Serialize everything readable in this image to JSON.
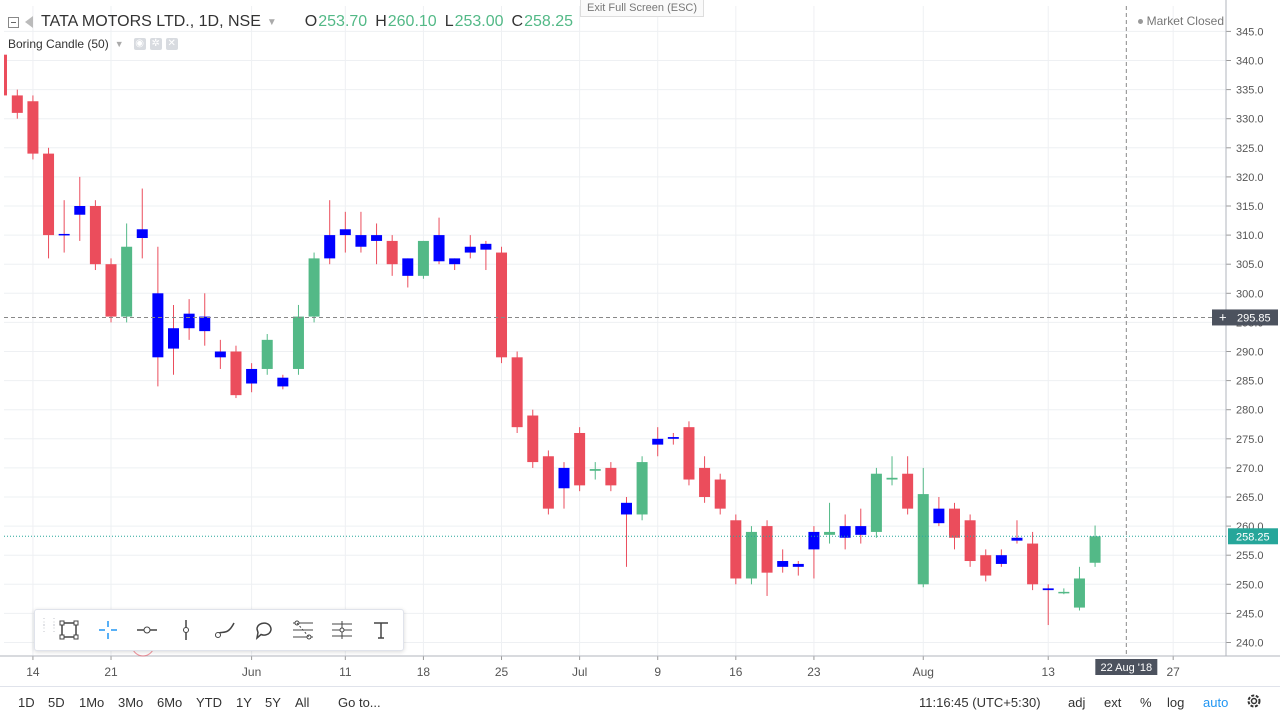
{
  "header": {
    "symbol": "TATA MOTORS LTD., 1D, NSE",
    "ohlc": [
      {
        "label": "O",
        "value": "253.70"
      },
      {
        "label": "H",
        "value": "260.10"
      },
      {
        "label": "L",
        "value": "253.00"
      },
      {
        "label": "C",
        "value": "258.25"
      }
    ],
    "indicator": "Boring Candle (50)",
    "exit_fullscreen": "Exit Full Screen (ESC)",
    "market_status": "Market Closed"
  },
  "colors": {
    "up": "#53b987",
    "down": "#eb4d5c",
    "boring": "#0000ff",
    "axis_text": "#555555",
    "last_price_line": "#26a69a",
    "crosshair": "#888888"
  },
  "chart_data": {
    "type": "candlestick",
    "ylim": [
      237,
      347
    ],
    "y_ticks": [
      240,
      245,
      250,
      255,
      260,
      265,
      270,
      275,
      280,
      285,
      290,
      295,
      300,
      305,
      310,
      315,
      320,
      325,
      330,
      335,
      340,
      345
    ],
    "x_tick_labels": [
      {
        "label": "14",
        "index": 1
      },
      {
        "label": "21",
        "index": 6
      },
      {
        "label": "Jun",
        "index": 15
      },
      {
        "label": "11",
        "index": 21
      },
      {
        "label": "18",
        "index": 26
      },
      {
        "label": "25",
        "index": 31
      },
      {
        "label": "Jul",
        "index": 36
      },
      {
        "label": "9",
        "index": 41
      },
      {
        "label": "16",
        "index": 46
      },
      {
        "label": "23",
        "index": 51
      },
      {
        "label": "Aug",
        "index": 58
      },
      {
        "label": "13",
        "index": 66
      },
      {
        "label": "27",
        "index": 74
      }
    ],
    "crosshair": {
      "price": "295.85",
      "date": "22 Aug '18",
      "index": 71
    },
    "last_price": "258.25",
    "candles": [
      {
        "o": 334,
        "h": 335,
        "l": 330,
        "c": 331,
        "b": 0
      },
      {
        "o": 333,
        "h": 334,
        "l": 323,
        "c": 324,
        "b": 0
      },
      {
        "o": 324,
        "h": 325,
        "l": 306,
        "c": 310,
        "b": 0
      },
      {
        "o": 310,
        "h": 316,
        "l": 307,
        "c": 310.2,
        "b": 1
      },
      {
        "o": 313.5,
        "h": 320,
        "l": 309,
        "c": 315,
        "b": 1
      },
      {
        "o": 315,
        "h": 316,
        "l": 304,
        "c": 305,
        "b": 0
      },
      {
        "o": 305,
        "h": 306,
        "l": 295,
        "c": 296,
        "b": 0
      },
      {
        "o": 296,
        "h": 312,
        "l": 295,
        "c": 308,
        "b": 0
      },
      {
        "o": 309.5,
        "h": 318,
        "l": 306,
        "c": 311,
        "b": 1
      },
      {
        "o": 300,
        "h": 308,
        "l": 284,
        "c": 289,
        "b": 1
      },
      {
        "o": 290.5,
        "h": 298,
        "l": 286,
        "c": 294,
        "b": 1
      },
      {
        "o": 294,
        "h": 299,
        "l": 292,
        "c": 296.5,
        "b": 1
      },
      {
        "o": 293.5,
        "h": 300,
        "l": 291,
        "c": 296,
        "b": 1
      },
      {
        "o": 289,
        "h": 292,
        "l": 287,
        "c": 290,
        "b": 1
      },
      {
        "o": 290,
        "h": 291,
        "l": 282,
        "c": 282.5,
        "b": 0
      },
      {
        "o": 284.5,
        "h": 288,
        "l": 283,
        "c": 287,
        "b": 1
      },
      {
        "o": 287,
        "h": 293,
        "l": 286,
        "c": 292,
        "b": 0
      },
      {
        "o": 284,
        "h": 286,
        "l": 283.5,
        "c": 285.5,
        "b": 1
      },
      {
        "o": 287,
        "h": 298,
        "l": 286,
        "c": 296,
        "b": 0
      },
      {
        "o": 296,
        "h": 307,
        "l": 295,
        "c": 306,
        "b": 0
      },
      {
        "o": 306,
        "h": 316,
        "l": 305,
        "c": 310,
        "b": 1
      },
      {
        "o": 310,
        "h": 314,
        "l": 307,
        "c": 311,
        "b": 1
      },
      {
        "o": 308,
        "h": 314,
        "l": 307,
        "c": 310,
        "b": 1
      },
      {
        "o": 309,
        "h": 312,
        "l": 305,
        "c": 310,
        "b": 1
      },
      {
        "o": 309,
        "h": 310,
        "l": 303,
        "c": 305,
        "b": 0
      },
      {
        "o": 303,
        "h": 306,
        "l": 301,
        "c": 306,
        "b": 1
      },
      {
        "o": 303,
        "h": 309,
        "l": 302.5,
        "c": 309,
        "b": 0
      },
      {
        "o": 310,
        "h": 313,
        "l": 305,
        "c": 305.5,
        "b": 1
      },
      {
        "o": 305,
        "h": 306,
        "l": 304,
        "c": 306,
        "b": 1
      },
      {
        "o": 307,
        "h": 310,
        "l": 306,
        "c": 308,
        "b": 1
      },
      {
        "o": 307.5,
        "h": 309,
        "l": 304,
        "c": 308.5,
        "b": 1
      },
      {
        "o": 307,
        "h": 308,
        "l": 288,
        "c": 289,
        "b": 0
      },
      {
        "o": 289,
        "h": 290,
        "l": 276,
        "c": 277,
        "b": 0
      },
      {
        "o": 279,
        "h": 280,
        "l": 270,
        "c": 271,
        "b": 0
      },
      {
        "o": 272,
        "h": 273,
        "l": 262,
        "c": 263,
        "b": 0
      },
      {
        "o": 266.5,
        "h": 271,
        "l": 263,
        "c": 270,
        "b": 1
      },
      {
        "o": 276,
        "h": 277,
        "l": 266,
        "c": 267,
        "b": 0
      },
      {
        "o": 269.5,
        "h": 271,
        "l": 268,
        "c": 269.8,
        "b": 0
      },
      {
        "o": 270,
        "h": 271,
        "l": 266,
        "c": 267,
        "b": 0
      },
      {
        "o": 262,
        "h": 265,
        "l": 253,
        "c": 264,
        "b": 1
      },
      {
        "o": 262,
        "h": 272,
        "l": 261,
        "c": 271,
        "b": 0
      },
      {
        "o": 274,
        "h": 277,
        "l": 272,
        "c": 275,
        "b": 1
      },
      {
        "o": 275,
        "h": 276,
        "l": 274,
        "c": 275.3,
        "b": 1
      },
      {
        "o": 277,
        "h": 278,
        "l": 267,
        "c": 268,
        "b": 0
      },
      {
        "o": 270,
        "h": 272,
        "l": 264,
        "c": 265,
        "b": 0
      },
      {
        "o": 268,
        "h": 269,
        "l": 262,
        "c": 263,
        "b": 0
      },
      {
        "o": 261,
        "h": 262,
        "l": 250,
        "c": 251,
        "b": 0
      },
      {
        "o": 251,
        "h": 260,
        "l": 250,
        "c": 259,
        "b": 0
      },
      {
        "o": 260,
        "h": 261,
        "l": 248,
        "c": 252,
        "b": 0
      },
      {
        "o": 253,
        "h": 256,
        "l": 252,
        "c": 254,
        "b": 1
      },
      {
        "o": 253,
        "h": 254,
        "l": 251.5,
        "c": 253.5,
        "b": 1
      },
      {
        "o": 256,
        "h": 260,
        "l": 251,
        "c": 259,
        "b": 1
      },
      {
        "o": 258.5,
        "h": 264,
        "l": 257,
        "c": 259,
        "b": 0
      },
      {
        "o": 258,
        "h": 262,
        "l": 256,
        "c": 260,
        "b": 1
      },
      {
        "o": 258.5,
        "h": 263,
        "l": 257,
        "c": 260,
        "b": 1
      },
      {
        "o": 259,
        "h": 270,
        "l": 258,
        "c": 269,
        "b": 0
      },
      {
        "o": 268,
        "h": 272,
        "l": 267,
        "c": 268.3,
        "b": 0
      },
      {
        "o": 269,
        "h": 272,
        "l": 262,
        "c": 263,
        "b": 0
      },
      {
        "o": 250,
        "h": 270,
        "l": 249.5,
        "c": 265.5,
        "b": 0
      },
      {
        "o": 263,
        "h": 265,
        "l": 260,
        "c": 260.5,
        "b": 1
      },
      {
        "o": 263,
        "h": 264,
        "l": 256,
        "c": 258,
        "b": 0
      },
      {
        "o": 261,
        "h": 262,
        "l": 253,
        "c": 254,
        "b": 0
      },
      {
        "o": 255,
        "h": 256,
        "l": 250.5,
        "c": 251.5,
        "b": 0
      },
      {
        "o": 253.5,
        "h": 256,
        "l": 253,
        "c": 255,
        "b": 1
      },
      {
        "o": 258,
        "h": 261,
        "l": 257,
        "c": 257.5,
        "b": 1
      },
      {
        "o": 257,
        "h": 259,
        "l": 249,
        "c": 250,
        "b": 0
      },
      {
        "o": 249,
        "h": 250,
        "l": 243,
        "c": 249.3,
        "b": 1
      },
      {
        "o": 248.7,
        "h": 249.3,
        "l": 248.3,
        "c": 248.7,
        "b": 0
      },
      {
        "o": 246,
        "h": 253,
        "l": 245.5,
        "c": 251,
        "b": 0
      },
      {
        "o": 253.7,
        "h": 260.1,
        "l": 253,
        "c": 258.25,
        "b": 0
      }
    ]
  },
  "drawing_tools": [
    "rectangle-icon",
    "crosshair-icon",
    "horizontal-ray-icon",
    "vertical-line-icon",
    "brush-icon",
    "callout-icon",
    "fib-retracement-icon",
    "fib-extension-icon",
    "text-icon"
  ],
  "bottom_toolbar": {
    "ranges": [
      "1D",
      "5D",
      "1Mo",
      "3Mo",
      "6Mo",
      "YTD",
      "1Y",
      "5Y",
      "All"
    ],
    "goto": "Go to...",
    "time": "11:16:45 (UTC+5:30)",
    "options": [
      "adj",
      "ext",
      "%",
      "log",
      "auto"
    ]
  }
}
